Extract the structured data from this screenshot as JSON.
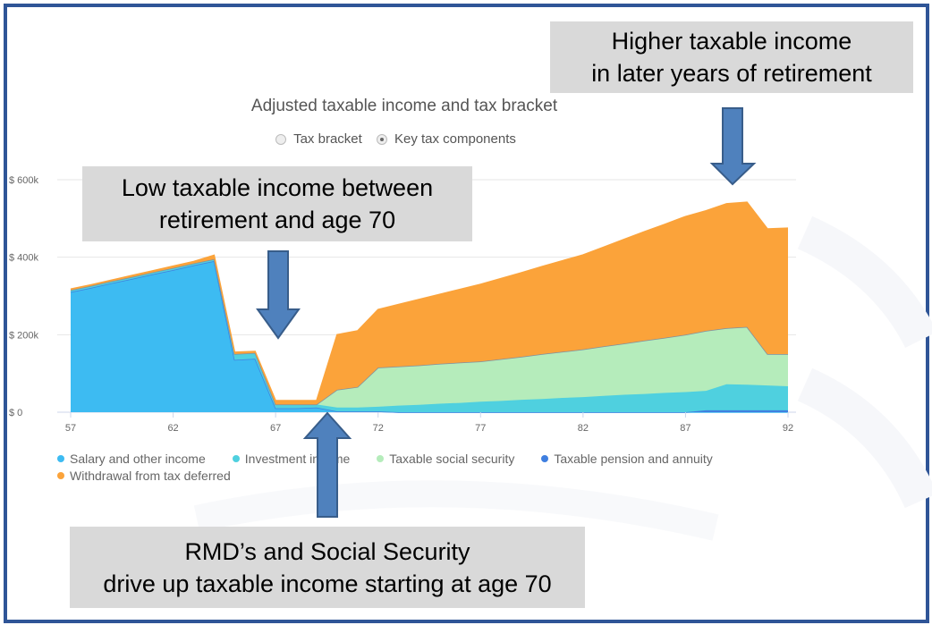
{
  "chart_data": {
    "type": "area",
    "stacked": true,
    "title": "Adjusted taxable income and tax bracket",
    "view_options": [
      {
        "label": "Tax bracket",
        "selected": false
      },
      {
        "label": "Key tax components",
        "selected": true
      }
    ],
    "x": [
      57,
      58,
      59,
      60,
      61,
      62,
      63,
      64,
      65,
      66,
      67,
      68,
      69,
      70,
      71,
      72,
      73,
      74,
      75,
      76,
      77,
      78,
      79,
      80,
      81,
      82,
      83,
      84,
      85,
      86,
      87,
      88,
      89,
      90,
      91,
      92
    ],
    "x_ticks": [
      57,
      62,
      67,
      72,
      77,
      82,
      87,
      92
    ],
    "y_ticks": [
      0,
      200000,
      400000,
      600000
    ],
    "y_tick_labels": [
      "$ 0",
      "$ 200k",
      "$ 400k",
      "$ 600k"
    ],
    "ylim": [
      0,
      600000
    ],
    "grid": "horizontal",
    "legend_position": "bottom-left",
    "units": "thousands of dollars",
    "series": [
      {
        "name": "Salary and other income",
        "color": "#3dbbf2",
        "values": [
          310,
          321,
          333,
          344,
          356,
          367,
          379,
          390,
          135,
          138,
          10,
          10,
          12,
          2,
          2,
          2,
          0,
          0,
          0,
          0,
          0,
          0,
          0,
          0,
          0,
          0,
          0,
          0,
          0,
          0,
          0,
          0,
          0,
          0,
          0,
          0
        ]
      },
      {
        "name": "Taxable pension and annuity",
        "color": "#3f7fe0",
        "values": [
          0,
          0,
          0,
          0,
          0,
          0,
          0,
          0,
          0,
          0,
          0,
          0,
          0,
          0,
          0,
          0,
          0,
          0,
          0,
          0,
          0,
          0,
          0,
          0,
          0,
          0,
          0,
          0,
          0,
          0,
          0,
          5,
          5,
          5,
          5,
          5
        ]
      },
      {
        "name": "Investment income",
        "color": "#4fd0df",
        "values": [
          5,
          5,
          5,
          5,
          5,
          5,
          5,
          5,
          15,
          15,
          10,
          10,
          8,
          10,
          10,
          12,
          17,
          19,
          22,
          24,
          27,
          29,
          32,
          34,
          37,
          39,
          42,
          45,
          47,
          50,
          52,
          50,
          67,
          66,
          64,
          62
        ]
      },
      {
        "name": "Taxable social security",
        "color": "#b5ecbb",
        "values": [
          0,
          0,
          0,
          0,
          0,
          0,
          0,
          0,
          0,
          0,
          0,
          0,
          0,
          46,
          53,
          101,
          101,
          102,
          103,
          104,
          104,
          108,
          111,
          116,
          119,
          123,
          128,
          132,
          138,
          142,
          148,
          155,
          145,
          149,
          81,
          83
        ]
      },
      {
        "name": "Withdrawal from tax deferred",
        "color": "#fba33a",
        "values": [
          3,
          3,
          3,
          4,
          4,
          5,
          5,
          10,
          5,
          4,
          10,
          10,
          10,
          142,
          145,
          150,
          160,
          170,
          179,
          189,
          199,
          208,
          217,
          226,
          235,
          244,
          256,
          269,
          281,
          293,
          305,
          310,
          321,
          322,
          323,
          325
        ]
      }
    ],
    "legend_order": [
      "Salary and other income",
      "Investment income",
      "Taxable social security",
      "Taxable pension and annuity",
      "Withdrawal from tax deferred"
    ]
  },
  "annotations": {
    "low_income": [
      "Low taxable income between",
      "retirement and age 70"
    ],
    "higher_income": [
      "Higher taxable income",
      "in later years of retirement"
    ],
    "rmd": [
      "RMD’s and Social Security",
      "drive up taxable income starting at age 70"
    ]
  },
  "colors": {
    "frame": "#2f5597",
    "arrow": "#4f81bd",
    "arrow_outline": "#385d8a",
    "note_bg": "#d9d9d9"
  }
}
